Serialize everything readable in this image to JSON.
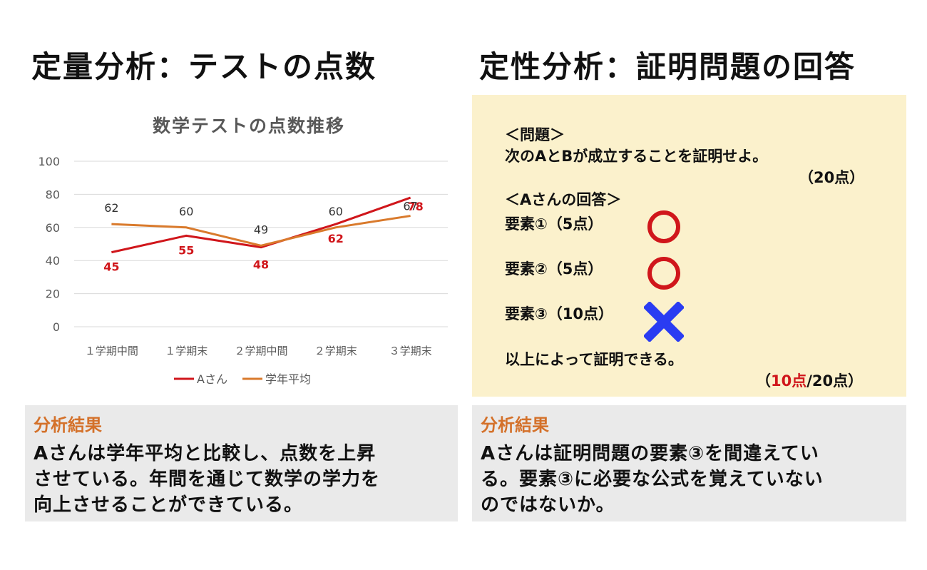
{
  "left_heading": "定量分析：テストの点数",
  "right_heading": "定性分析：証明問題の回答",
  "chart_data": {
    "type": "line",
    "title": "数学テストの点数推移",
    "categories": [
      "１学期中間",
      "１学期末",
      "２学期中間",
      "２学期末",
      "３学期末"
    ],
    "ylim": [
      0,
      100
    ],
    "yticks": [
      "100",
      "80",
      "60",
      "40",
      "20",
      "0"
    ],
    "grid": true,
    "legend_position": "bottom",
    "series": [
      {
        "name": "Aさん",
        "color": "#d0161b",
        "label_color": "#d0161b",
        "values": [
          45,
          55,
          48,
          62,
          78
        ]
      },
      {
        "name": "学年平均",
        "color": "#d97a2c",
        "label_color": "#333333",
        "values": [
          62,
          60,
          49,
          60,
          67
        ]
      }
    ]
  },
  "proof": {
    "problem_header": "＜問題＞",
    "problem_text": "次のAとBが成立することを証明せよ。",
    "problem_points": "（20点）",
    "answer_header": "＜Aさんの回答＞",
    "elements": [
      {
        "label": "要素①（5点）",
        "mark": "circle-icon",
        "mark_color": "#d0161b"
      },
      {
        "label": "要素②（5点）",
        "mark": "circle-icon",
        "mark_color": "#d0161b"
      },
      {
        "label": "要素③（10点）",
        "mark": "cross-icon",
        "mark_color": "#2a3cf2"
      }
    ],
    "conclusion": "以上によって証明できる。",
    "score_open": "（",
    "score_earned": "10点",
    "score_rest": "/20点）",
    "score_color": "#d0161b"
  },
  "left_result": {
    "title": "分析結果",
    "lines": [
      "Aさんは学年平均と比較し、点数を上昇",
      "させている。年間を通じて数学の学力を",
      "向上させることができている。"
    ]
  },
  "right_result": {
    "title": "分析結果",
    "lines": [
      "Aさんは証明問題の要素③を間違えてい",
      "る。要素③に必要な公式を覚えていない",
      "のではないか。"
    ]
  }
}
